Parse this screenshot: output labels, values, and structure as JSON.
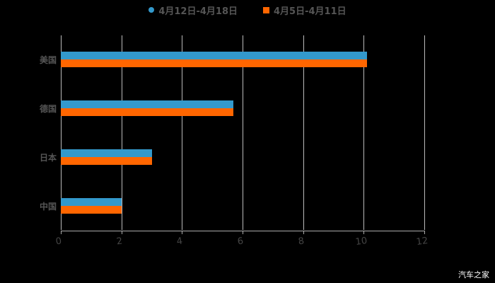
{
  "legend": [
    {
      "label": "4月12日-4月18日",
      "color": "#3399cc",
      "shape": "circle"
    },
    {
      "label": "4月5日-4月11日",
      "color": "#ff6600",
      "shape": "square"
    }
  ],
  "watermark": "汽车之家",
  "chart_data": {
    "type": "bar",
    "orientation": "horizontal",
    "categories": [
      "美国",
      "德国",
      "日本",
      "中国"
    ],
    "series": [
      {
        "name": "4月12日-4月18日",
        "color": "#3399cc",
        "values": [
          10.1,
          5.7,
          3.0,
          2.0
        ]
      },
      {
        "name": "4月5日-4月11日",
        "color": "#ff6600",
        "values": [
          10.1,
          5.7,
          3.0,
          2.0
        ]
      }
    ],
    "xticks": [
      "0",
      "2",
      "4",
      "6",
      "8",
      "10",
      "12"
    ],
    "xlim": [
      0,
      12
    ],
    "grid": true,
    "legend_position": "top",
    "title": "",
    "xlabel": "",
    "ylabel": ""
  }
}
